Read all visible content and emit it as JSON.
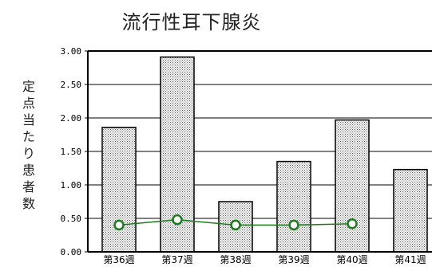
{
  "chart_data": {
    "type": "bar",
    "title": "流行性耳下腺炎",
    "ylabel": "定点当たり患者数",
    "xlabel": "",
    "categories": [
      "第36週",
      "第37週",
      "第38週",
      "第39週",
      "第40週",
      "第41週"
    ],
    "series": [
      {
        "type": "bar",
        "values": [
          1.86,
          2.91,
          0.75,
          1.35,
          1.97,
          1.23
        ]
      },
      {
        "type": "line",
        "values": [
          0.4,
          0.48,
          0.4,
          0.4,
          0.42,
          null
        ]
      }
    ],
    "ylim": [
      0,
      3.0
    ],
    "yticks": [
      "0.00",
      "0.50",
      "1.00",
      "1.50",
      "2.00",
      "2.50",
      "3.00"
    ],
    "grid": true,
    "colors": {
      "bar_fill": "#c8c8c8",
      "bar_stroke": "#000000",
      "line": "#1e7a1e",
      "marker": "#1e7a1e"
    }
  }
}
